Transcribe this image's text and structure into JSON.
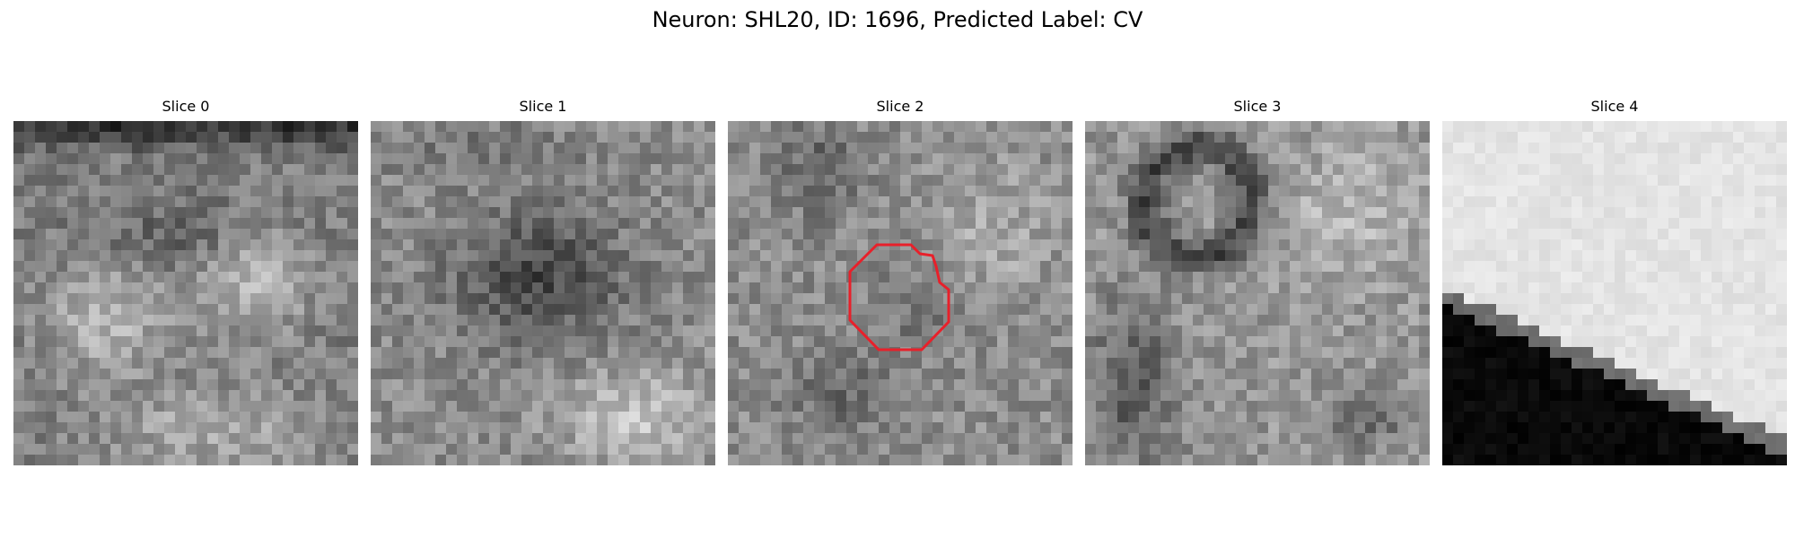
{
  "figure": {
    "title": "Neuron: SHL20, ID: 1696, Predicted Label: CV"
  },
  "panels": [
    {
      "title": "Slice 0",
      "base": "mid-gray",
      "overlay": false
    },
    {
      "title": "Slice 1",
      "base": "gray-dark-center",
      "overlay": false
    },
    {
      "title": "Slice 2",
      "base": "gray-noisy",
      "overlay": true,
      "overlay_color": "#e8202a"
    },
    {
      "title": "Slice 3",
      "base": "gray-ring",
      "overlay": false
    },
    {
      "title": "Slice 4",
      "base": "light-with-dark-corner",
      "overlay": false
    }
  ]
}
